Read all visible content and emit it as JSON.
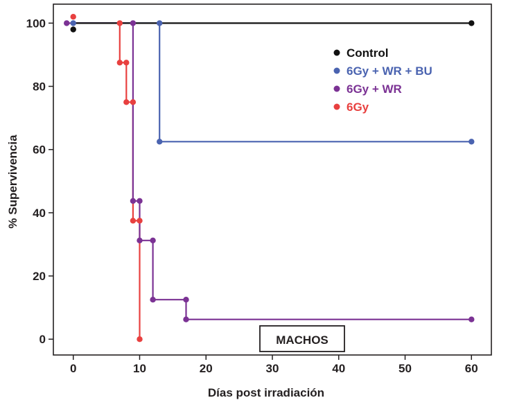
{
  "chart_data": {
    "type": "line",
    "step": true,
    "xlabel": "Días post irradiación",
    "ylabel": "% Supervivencia",
    "xlim": [
      -3,
      63
    ],
    "ylim": [
      -5,
      106
    ],
    "x_ticks": [
      0,
      10,
      20,
      30,
      40,
      50,
      60
    ],
    "y_ticks": [
      0,
      20,
      40,
      60,
      80,
      100
    ],
    "grid": false,
    "legend_position": "top-right",
    "annotation": "MACHOS",
    "series": [
      {
        "name": "Control",
        "color": "#111111",
        "steps": [
          [
            0,
            100
          ],
          [
            60,
            100
          ]
        ],
        "points": [
          [
            0,
            98
          ],
          [
            60,
            100
          ]
        ]
      },
      {
        "name": "6Gy + WR + BU",
        "color": "#4a63b0",
        "steps": [
          [
            0,
            100
          ],
          [
            13,
            100
          ],
          [
            13,
            62.5
          ],
          [
            60,
            62.5
          ]
        ],
        "points": [
          [
            0,
            100
          ],
          [
            13,
            100
          ],
          [
            13,
            62.5
          ],
          [
            60,
            62.5
          ]
        ]
      },
      {
        "name": "6Gy + WR",
        "color": "#7b3294",
        "steps": [
          [
            -1,
            100
          ],
          [
            9,
            100
          ],
          [
            9,
            43.75
          ],
          [
            10,
            43.75
          ],
          [
            10,
            31.25
          ],
          [
            12,
            31.25
          ],
          [
            12,
            12.5
          ],
          [
            17,
            12.5
          ],
          [
            17,
            6.25
          ],
          [
            60,
            6.25
          ]
        ],
        "points": [
          [
            -1,
            100
          ],
          [
            9,
            100
          ],
          [
            9,
            43.75
          ],
          [
            10,
            43.75
          ],
          [
            10,
            31.25
          ],
          [
            12,
            31.25
          ],
          [
            12,
            12.5
          ],
          [
            17,
            12.5
          ],
          [
            17,
            6.25
          ],
          [
            60,
            6.25
          ]
        ]
      },
      {
        "name": "6Gy",
        "color": "#e8403f",
        "steps": [
          [
            0,
            100
          ],
          [
            7,
            100
          ],
          [
            7,
            87.5
          ],
          [
            8,
            87.5
          ],
          [
            8,
            75
          ],
          [
            9,
            75
          ],
          [
            9,
            37.5
          ],
          [
            10,
            37.5
          ],
          [
            10,
            0
          ]
        ],
        "points": [
          [
            0,
            102
          ],
          [
            7,
            100
          ],
          [
            7,
            87.5
          ],
          [
            8,
            87.5
          ],
          [
            8,
            75
          ],
          [
            9,
            75
          ],
          [
            9,
            37.5
          ],
          [
            10,
            37.5
          ],
          [
            10,
            0
          ]
        ]
      }
    ]
  }
}
